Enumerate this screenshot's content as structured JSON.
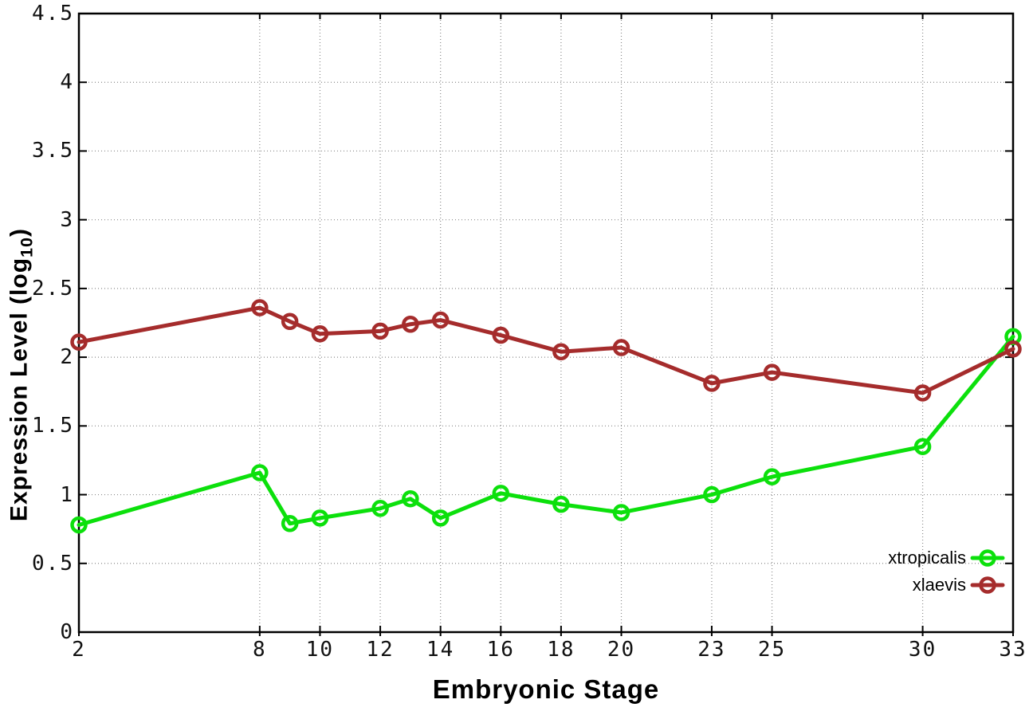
{
  "chart_data": {
    "type": "line",
    "title": "",
    "xlabel": "Embryonic Stage",
    "ylabel": "Expression Level (log10)",
    "ylabel_parts": {
      "prefix": "Expression Level (log",
      "subscript": "10",
      "suffix": ")"
    },
    "x": [
      2,
      8,
      9,
      10,
      12,
      13,
      14,
      16,
      18,
      20,
      23,
      25,
      30,
      33
    ],
    "series": [
      {
        "name": "xtropicalis",
        "color": "#0ce00c",
        "marker": "open-circle",
        "values": [
          0.78,
          1.16,
          0.79,
          0.83,
          0.9,
          0.97,
          0.83,
          1.01,
          0.93,
          0.87,
          1.0,
          1.13,
          1.35,
          2.15
        ]
      },
      {
        "name": "xlaevis",
        "color": "#a52c2c",
        "marker": "open-circle",
        "values": [
          2.11,
          2.36,
          2.26,
          2.17,
          2.19,
          2.24,
          2.27,
          2.16,
          2.04,
          2.07,
          1.81,
          1.89,
          1.74,
          2.06
        ]
      }
    ],
    "xlim": [
      2,
      33
    ],
    "ylim": [
      0,
      4.5
    ],
    "xticks": [
      2,
      8,
      10,
      12,
      14,
      16,
      18,
      20,
      23,
      25,
      30,
      33
    ],
    "xtick_labels": [
      "2",
      "8",
      "10",
      "12",
      "14",
      "16",
      "18",
      "20",
      "23",
      "25",
      "30",
      "33"
    ],
    "yticks": [
      0,
      0.5,
      1,
      1.5,
      2,
      2.5,
      3,
      3.5,
      4,
      4.5
    ],
    "ytick_labels": [
      "0",
      "0.5",
      "1",
      "1.5",
      "2",
      "2.5",
      "3",
      "3.5",
      "4",
      "4.5"
    ],
    "grid": true,
    "grid_style": "dotted",
    "legend_position": "bottom-right",
    "background_color": "#ffffff",
    "axis_color": "#000000",
    "grid_color": "#8a8a8a",
    "tick_label_color": "#111111"
  }
}
